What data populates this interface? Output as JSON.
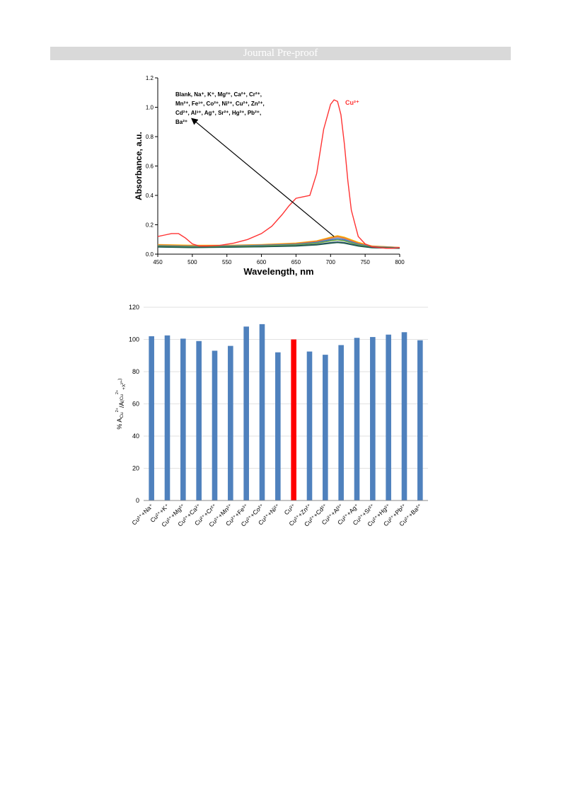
{
  "header": {
    "banner": "Journal Pre-proof"
  },
  "chart_data": [
    {
      "type": "line",
      "xlabel": "Wavelength, nm",
      "ylabel": "Absorbance, a.u.",
      "xlim": [
        450,
        800
      ],
      "ylim": [
        0,
        1.2
      ],
      "x_ticks": [
        "450",
        "500",
        "550",
        "600",
        "650",
        "700",
        "750",
        "800"
      ],
      "y_ticks": [
        "0.0",
        "0.2",
        "0.4",
        "0.6",
        "0.8",
        "1.0",
        "1.2"
      ],
      "annotation_lines": [
        "Blank, Na⁺, K⁺, Mg²⁺, Ca²⁺, Cr²⁺,",
        "Mn²⁺, Fe³⁺, Co²⁺, Ni²⁺, Cu²⁺, Zn²⁺,",
        "Cd²⁺, Al³⁺, Ag⁺, Sr²⁺, Hg²⁺, Pb²⁺,",
        "Ba²⁺"
      ],
      "series": [
        {
          "name": "Cu²⁺",
          "color": "#ff3333",
          "x": [
            450,
            460,
            470,
            480,
            490,
            500,
            510,
            520,
            540,
            560,
            580,
            600,
            615,
            630,
            640,
            650,
            660,
            670,
            680,
            690,
            700,
            705,
            710,
            715,
            720,
            725,
            730,
            740,
            750,
            760,
            770,
            780,
            790,
            800
          ],
          "y": [
            0.12,
            0.13,
            0.14,
            0.14,
            0.11,
            0.07,
            0.055,
            0.055,
            0.06,
            0.075,
            0.1,
            0.14,
            0.19,
            0.27,
            0.33,
            0.38,
            0.39,
            0.4,
            0.55,
            0.85,
            1.02,
            1.05,
            1.04,
            0.95,
            0.75,
            0.5,
            0.3,
            0.12,
            0.07,
            0.05,
            0.045,
            0.04,
            0.04,
            0.045
          ]
        },
        {
          "color": "#ffc000",
          "x": [
            450,
            500,
            550,
            600,
            650,
            680,
            700,
            710,
            720,
            740,
            760,
            800
          ],
          "y": [
            0.065,
            0.06,
            0.06,
            0.065,
            0.075,
            0.09,
            0.115,
            0.125,
            0.115,
            0.08,
            0.055,
            0.045
          ]
        },
        {
          "color": "#a5a5a5",
          "x": [
            450,
            500,
            550,
            600,
            650,
            680,
            700,
            710,
            720,
            740,
            760,
            800
          ],
          "y": [
            0.06,
            0.055,
            0.058,
            0.062,
            0.07,
            0.085,
            0.105,
            0.115,
            0.105,
            0.072,
            0.052,
            0.044
          ]
        },
        {
          "color": "#ed7d31",
          "x": [
            450,
            500,
            550,
            600,
            650,
            680,
            700,
            710,
            720,
            740,
            760,
            800
          ],
          "y": [
            0.062,
            0.057,
            0.058,
            0.063,
            0.072,
            0.088,
            0.11,
            0.12,
            0.11,
            0.075,
            0.054,
            0.045
          ]
        },
        {
          "color": "#4472c4",
          "x": [
            450,
            500,
            550,
            600,
            650,
            680,
            700,
            710,
            720,
            740,
            760,
            800
          ],
          "y": [
            0.058,
            0.053,
            0.055,
            0.06,
            0.067,
            0.08,
            0.098,
            0.105,
            0.098,
            0.068,
            0.05,
            0.043
          ]
        },
        {
          "color": "#70ad47",
          "x": [
            450,
            500,
            550,
            600,
            650,
            680,
            700,
            710,
            720,
            740,
            760,
            800
          ],
          "y": [
            0.055,
            0.05,
            0.052,
            0.056,
            0.063,
            0.074,
            0.09,
            0.097,
            0.09,
            0.063,
            0.048,
            0.042
          ]
        },
        {
          "color": "#264478",
          "x": [
            450,
            500,
            550,
            600,
            650,
            680,
            700,
            710,
            720,
            740,
            760,
            800
          ],
          "y": [
            0.05,
            0.046,
            0.048,
            0.051,
            0.057,
            0.066,
            0.078,
            0.083,
            0.078,
            0.057,
            0.045,
            0.04
          ]
        },
        {
          "color": "#255e4f",
          "x": [
            450,
            500,
            550,
            600,
            650,
            680,
            700,
            710,
            720,
            740,
            760,
            800
          ],
          "y": [
            0.048,
            0.045,
            0.047,
            0.05,
            0.055,
            0.063,
            0.074,
            0.079,
            0.074,
            0.055,
            0.044,
            0.04
          ]
        }
      ]
    },
    {
      "type": "bar",
      "ylabel_main": "% A",
      "ylabel_sub1": "Cu",
      "ylabel_sup1": "2+",
      "ylabel_mid": "/A",
      "ylabel_sub2": "(Cu",
      "ylabel_sub2sup": "2+",
      "ylabel_sub3": "+X",
      "ylabel_sub3sup": "y+",
      "ylabel_end": ")",
      "ylim": [
        0,
        120
      ],
      "y_ticks": [
        "0",
        "20",
        "40",
        "60",
        "80",
        "100",
        "120"
      ],
      "categories": [
        "Cu²⁺+Na⁺",
        "Cu²⁺+K⁺",
        "Cu²⁺+Mg²⁺",
        "Cu²⁺+Ca²⁺",
        "Cu²⁺+Cr²⁺",
        "Cu²⁺+Mn²⁺",
        "Cu²⁺+Fe³⁺",
        "Cu²⁺+Co²⁺",
        "Cu²⁺+Ni²⁺",
        "Cu²⁺",
        "Cu²⁺+Zn²⁺",
        "Cu²⁺+Cd²⁺",
        "Cu²⁺+Al³⁺",
        "Cu²⁺+Ag⁺",
        "Cu²⁺+Sr²⁺",
        "Cu²⁺+Hg²⁺",
        "Cu²⁺+Pb²⁺",
        "Cu²⁺+Ba²⁺"
      ],
      "values": [
        102,
        102.5,
        100.5,
        99,
        93,
        96,
        108,
        109.5,
        92,
        100,
        92.5,
        90.5,
        96.5,
        101,
        101.5,
        103,
        104.5,
        99.5
      ],
      "bar_color": "#4f81bd",
      "highlight_color": "#ff0000",
      "highlight_index": 9,
      "grid": true
    }
  ]
}
